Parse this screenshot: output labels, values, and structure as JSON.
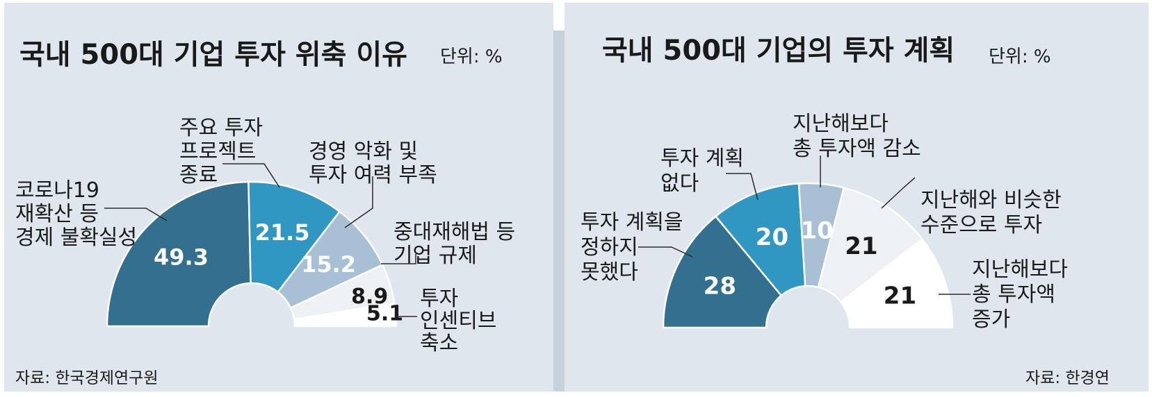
{
  "colors": {
    "background": "#dfe6ed",
    "dark": "#33708f",
    "mid": "#2f97c2",
    "light": "#a7c0d6",
    "pale": "#eef1f4",
    "white": "#ffffff",
    "text": "#1a1a1a",
    "leader": "#2a2a2a"
  },
  "panels": [
    {
      "title": "국내 500대 기업 투자 위축 이유",
      "unit": "단위: %",
      "source": "자료: 한국경제연구원",
      "chart_data": {
        "type": "semi-donut",
        "total": 100,
        "slices": [
          {
            "label": [
              "코로나19",
              "재확산 등",
              "경제 불확실성"
            ],
            "value": 49.3,
            "value_text": "49.3",
            "color": "#33708f",
            "value_color": "#ffffff"
          },
          {
            "label": [
              "주요 투자",
              "프로젝트",
              "종료"
            ],
            "value": 21.5,
            "value_text": "21.5",
            "color": "#2f97c2",
            "value_color": "#ffffff"
          },
          {
            "label": [
              "경영 악화 및",
              "투자 여력 부족"
            ],
            "value": 15.2,
            "value_text": "15.2",
            "color": "#a7c0d6",
            "value_color": "#ffffff"
          },
          {
            "label": [
              "중대재해법 등",
              "기업 규제"
            ],
            "value": 8.9,
            "value_text": "8.9",
            "color": "#eef1f4",
            "value_color": "#1a1a1a"
          },
          {
            "label": [
              "투자",
              "인센티브",
              "축소"
            ],
            "value": 5.1,
            "value_text": "5.1",
            "color": "#ffffff",
            "value_color": "#1a1a1a"
          }
        ]
      }
    },
    {
      "title": "국내 500대 기업의 투자 계획",
      "unit": "단위: %",
      "source": "자료: 한경연",
      "chart_data": {
        "type": "semi-donut",
        "total": 100,
        "slices": [
          {
            "label": [
              "투자 계획을",
              "정하지",
              "못했다"
            ],
            "value": 28,
            "value_text": "28",
            "color": "#33708f",
            "value_color": "#ffffff"
          },
          {
            "label": [
              "투자 계획",
              "없다"
            ],
            "value": 20,
            "value_text": "20",
            "color": "#2f97c2",
            "value_color": "#ffffff"
          },
          {
            "label": [
              "지난해보다",
              "총 투자액 감소"
            ],
            "value": 10,
            "value_text": "10",
            "color": "#a7c0d6",
            "value_color": "#ffffff"
          },
          {
            "label": [
              "지난해와 비슷한",
              "수준으로 투자"
            ],
            "value": 21,
            "value_text": "21",
            "color": "#eef1f4",
            "value_color": "#1a1a1a"
          },
          {
            "label": [
              "지난해보다",
              "총 투자액",
              "증가"
            ],
            "value": 21,
            "value_text": "21",
            "color": "#ffffff",
            "value_color": "#1a1a1a"
          }
        ]
      }
    }
  ]
}
